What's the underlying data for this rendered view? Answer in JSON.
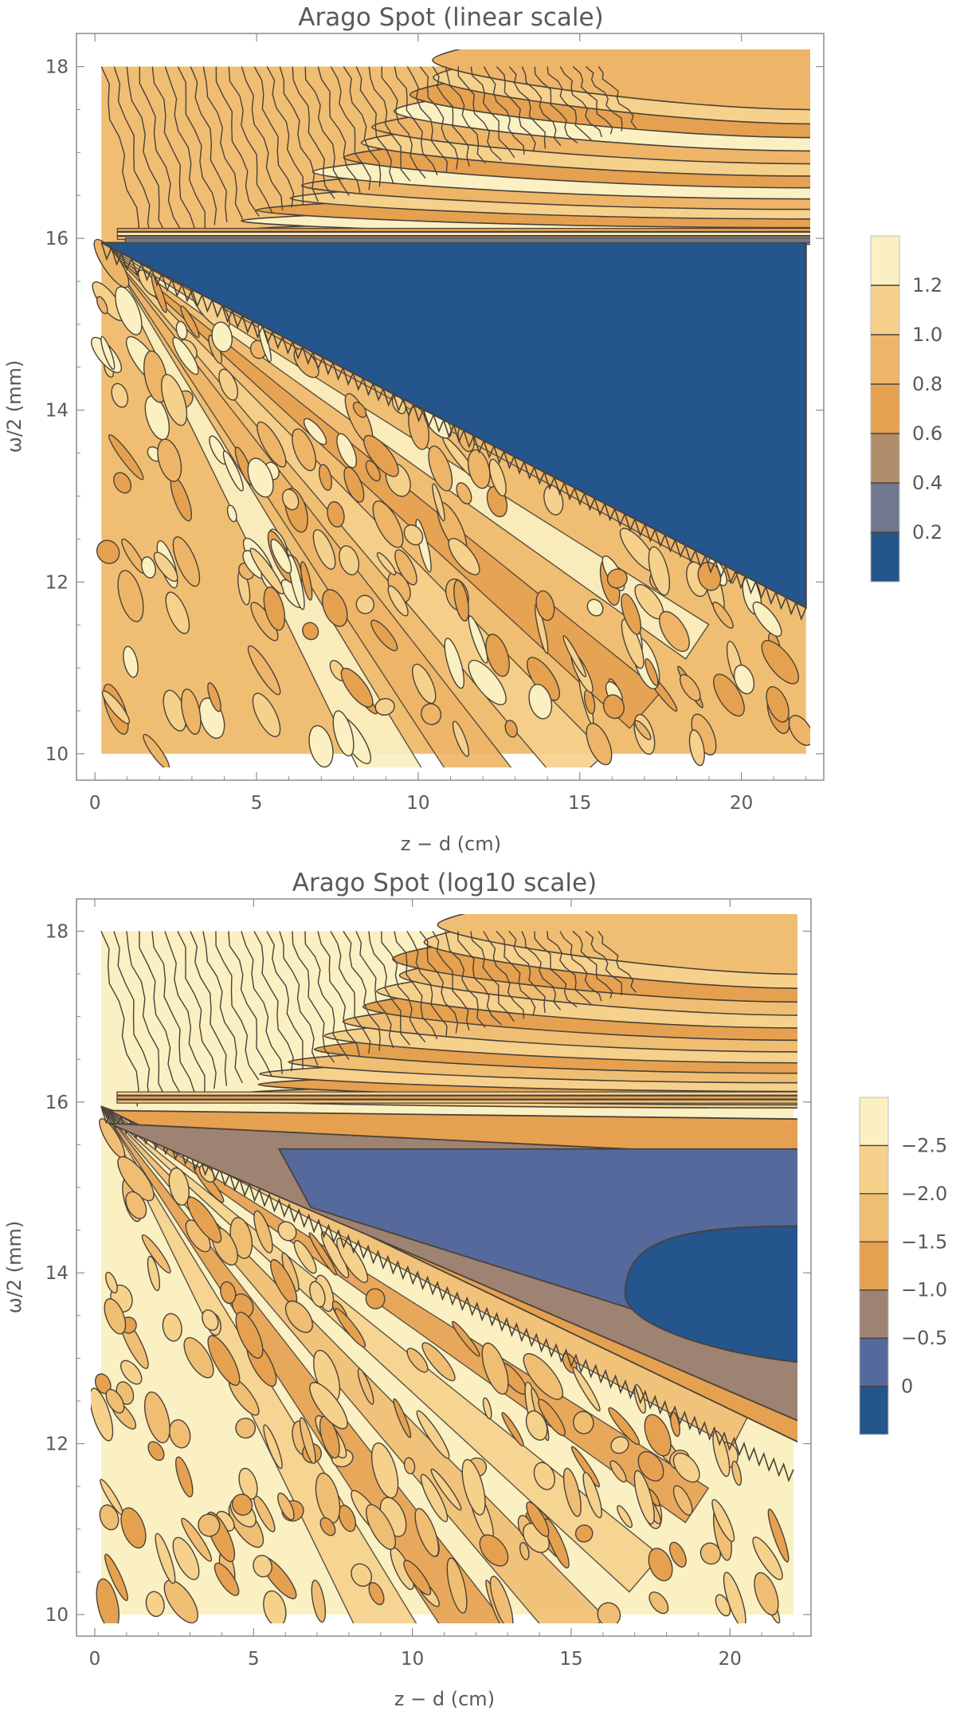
{
  "colors": {
    "frame": "#8c8c8c",
    "contour_line": "#4a4238",
    "text": "#595959"
  },
  "chart_data": [
    {
      "type": "contour",
      "title": "Arago Spot (linear scale)",
      "xlabel": "z − d  (cm)",
      "ylabel": "ω/2 (mm)",
      "xlim": [
        -0.3,
        22.4
      ],
      "ylim": [
        9.85,
        18.2
      ],
      "data_xlim": [
        0.2,
        22
      ],
      "data_ylim": [
        10,
        18
      ],
      "x_ticks": [
        0,
        5,
        10,
        15,
        20
      ],
      "x_tick_labels": [
        "0",
        "5",
        "10",
        "15",
        "20"
      ],
      "y_ticks": [
        10,
        12,
        14,
        16,
        18
      ],
      "y_tick_labels": [
        "10",
        "12",
        "14",
        "16",
        "18"
      ],
      "legend": {
        "placement": "right",
        "labels": [
          "0.2",
          "0.4",
          "0.6",
          "0.8",
          "1.0",
          "1.2"
        ],
        "bands": [
          "#24558c",
          "#707890",
          "#b08e6c",
          "#e6a150",
          "#eeb568",
          "#f6d18c",
          "#fbf0c2"
        ]
      },
      "regions": {
        "shadow_edge_x": [
          0.2,
          22
        ],
        "shadow_edge_y": [
          15.95,
          11.7
        ],
        "shadow_top_y": 15.95,
        "shadow_color": "#24558c",
        "background_color": "#f0be73",
        "upper_background_color": "#f1be74",
        "fringe_colors": [
          "#f6d18c",
          "#eeb568",
          "#fbf0c2",
          "#e6a150"
        ]
      }
    },
    {
      "type": "contour",
      "title": "Arago Spot (log10 scale)",
      "xlabel": "z − d  (cm)",
      "ylabel": "ω/2 (mm)",
      "xlim": [
        -0.3,
        22.4
      ],
      "ylim": [
        9.85,
        18.2
      ],
      "data_xlim": [
        0.2,
        22
      ],
      "data_ylim": [
        10,
        18
      ],
      "x_ticks": [
        0,
        5,
        10,
        15,
        20
      ],
      "x_tick_labels": [
        "0",
        "5",
        "10",
        "15",
        "20"
      ],
      "y_ticks": [
        10,
        12,
        14,
        16,
        18
      ],
      "y_tick_labels": [
        "10",
        "12",
        "14",
        "16",
        "18"
      ],
      "legend": {
        "placement": "right",
        "labels": [
          "0",
          "−0.5",
          "−1.0",
          "−1.5",
          "−2.0",
          "−2.5"
        ],
        "bands": [
          "#24558c",
          "#56699c",
          "#9e8272",
          "#e6a150",
          "#f0be73",
          "#f6d18c",
          "#fbf0c2"
        ]
      },
      "regions": {
        "shadow_edge_x": [
          0.2,
          22
        ],
        "shadow_edge_y": [
          15.95,
          11.7
        ],
        "shadow_top_y": 15.95,
        "level_bands": [
          {
            "level": "-1.0",
            "color": "#e6a150",
            "top": 15.9,
            "right_top": 15.8,
            "right_bottom": 12.0
          },
          {
            "level": "-1.5",
            "color": "#9e8272",
            "top": 15.75,
            "right_top": 15.35,
            "right_bottom": 12.25
          },
          {
            "level": "-2.0",
            "color": "#56699c",
            "top": 15.45,
            "right_top": 15.35,
            "right_bottom": 12.95,
            "start_x": 5.8
          },
          {
            "level": "-2.5",
            "color": "#24558c",
            "top": 14.55,
            "right_bottom": 12.95,
            "start_x": 16.7
          }
        ],
        "background_color": "#fbf0c2",
        "fringe_colors": [
          "#f6d18c",
          "#f0be73",
          "#e6a150"
        ]
      }
    }
  ]
}
